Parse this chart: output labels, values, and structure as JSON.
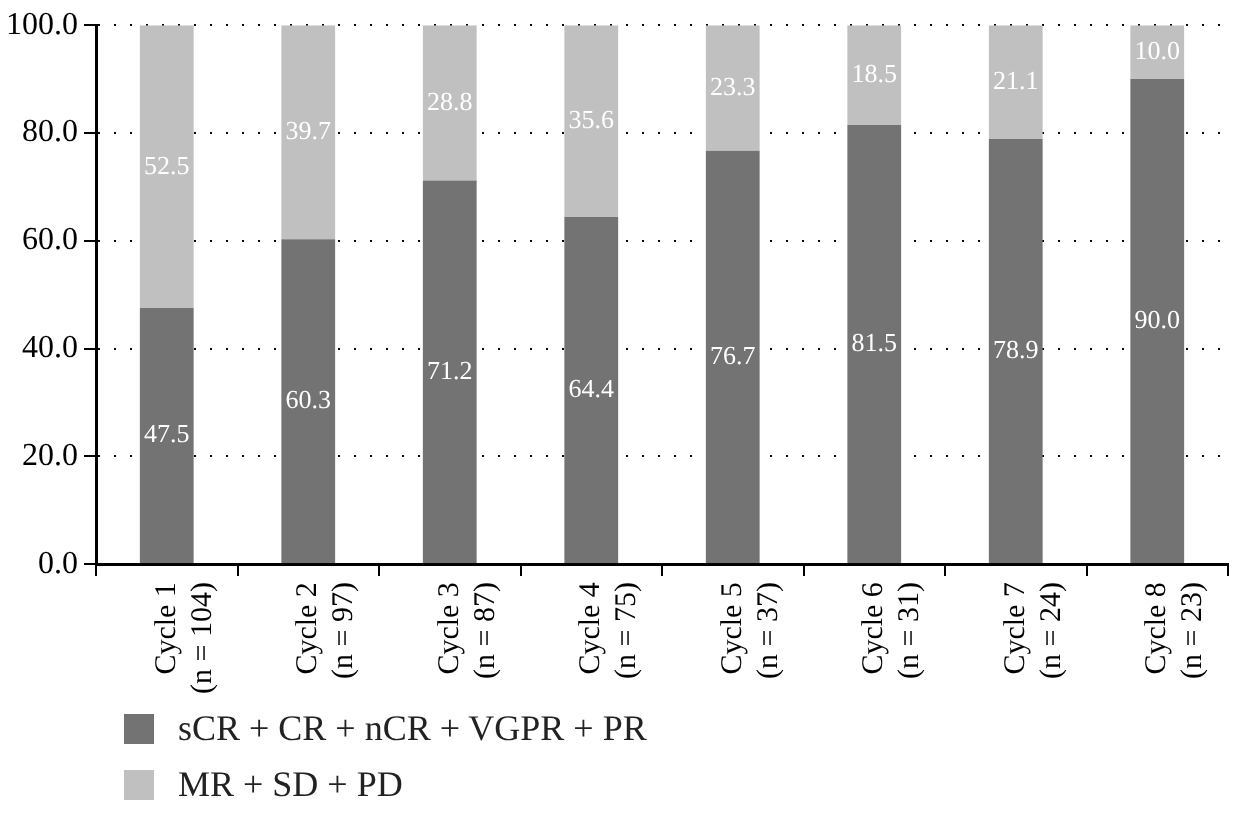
{
  "chart_data": {
    "type": "bar",
    "stacked": true,
    "categories": [
      "Cycle 1\n(n = 104)",
      "Cycle 2\n(n = 97)",
      "Cycle 3\n(n = 87)",
      "Cycle 4\n(n = 75)",
      "Cycle 5\n(n = 37)",
      "Cycle 6\n(n = 31)",
      "Cycle 7\n(n = 24)",
      "Cycle 8\n(n = 23)"
    ],
    "series": [
      {
        "name": "sCR + CR + nCR + VGPR + PR",
        "color": "#737373",
        "values": [
          47.5,
          60.3,
          71.2,
          64.4,
          76.7,
          81.5,
          78.9,
          90.0
        ],
        "value_labels": [
          "47.5",
          "60.3",
          "71.2",
          "64.4",
          "76.7",
          "81.5",
          "78.9",
          "90.0"
        ]
      },
      {
        "name": "MR + SD + PD",
        "color": "#c0c0c0",
        "values": [
          52.5,
          39.7,
          28.8,
          35.6,
          23.3,
          18.5,
          21.1,
          10.0
        ],
        "value_labels": [
          "52.5",
          "39.7",
          "28.8",
          "35.6",
          "23.3",
          "18.5",
          "21.1",
          "10.0"
        ]
      }
    ],
    "ylim": [
      0,
      100
    ],
    "yticks": [
      {
        "value": 0,
        "label": "0.0"
      },
      {
        "value": 20,
        "label": "20.0"
      },
      {
        "value": 40,
        "label": "40.0"
      },
      {
        "value": 60,
        "label": "60.0"
      },
      {
        "value": 80,
        "label": "80.0"
      },
      {
        "value": 100,
        "label": "100.0"
      }
    ],
    "grid": "y",
    "legend": "bottom left"
  }
}
